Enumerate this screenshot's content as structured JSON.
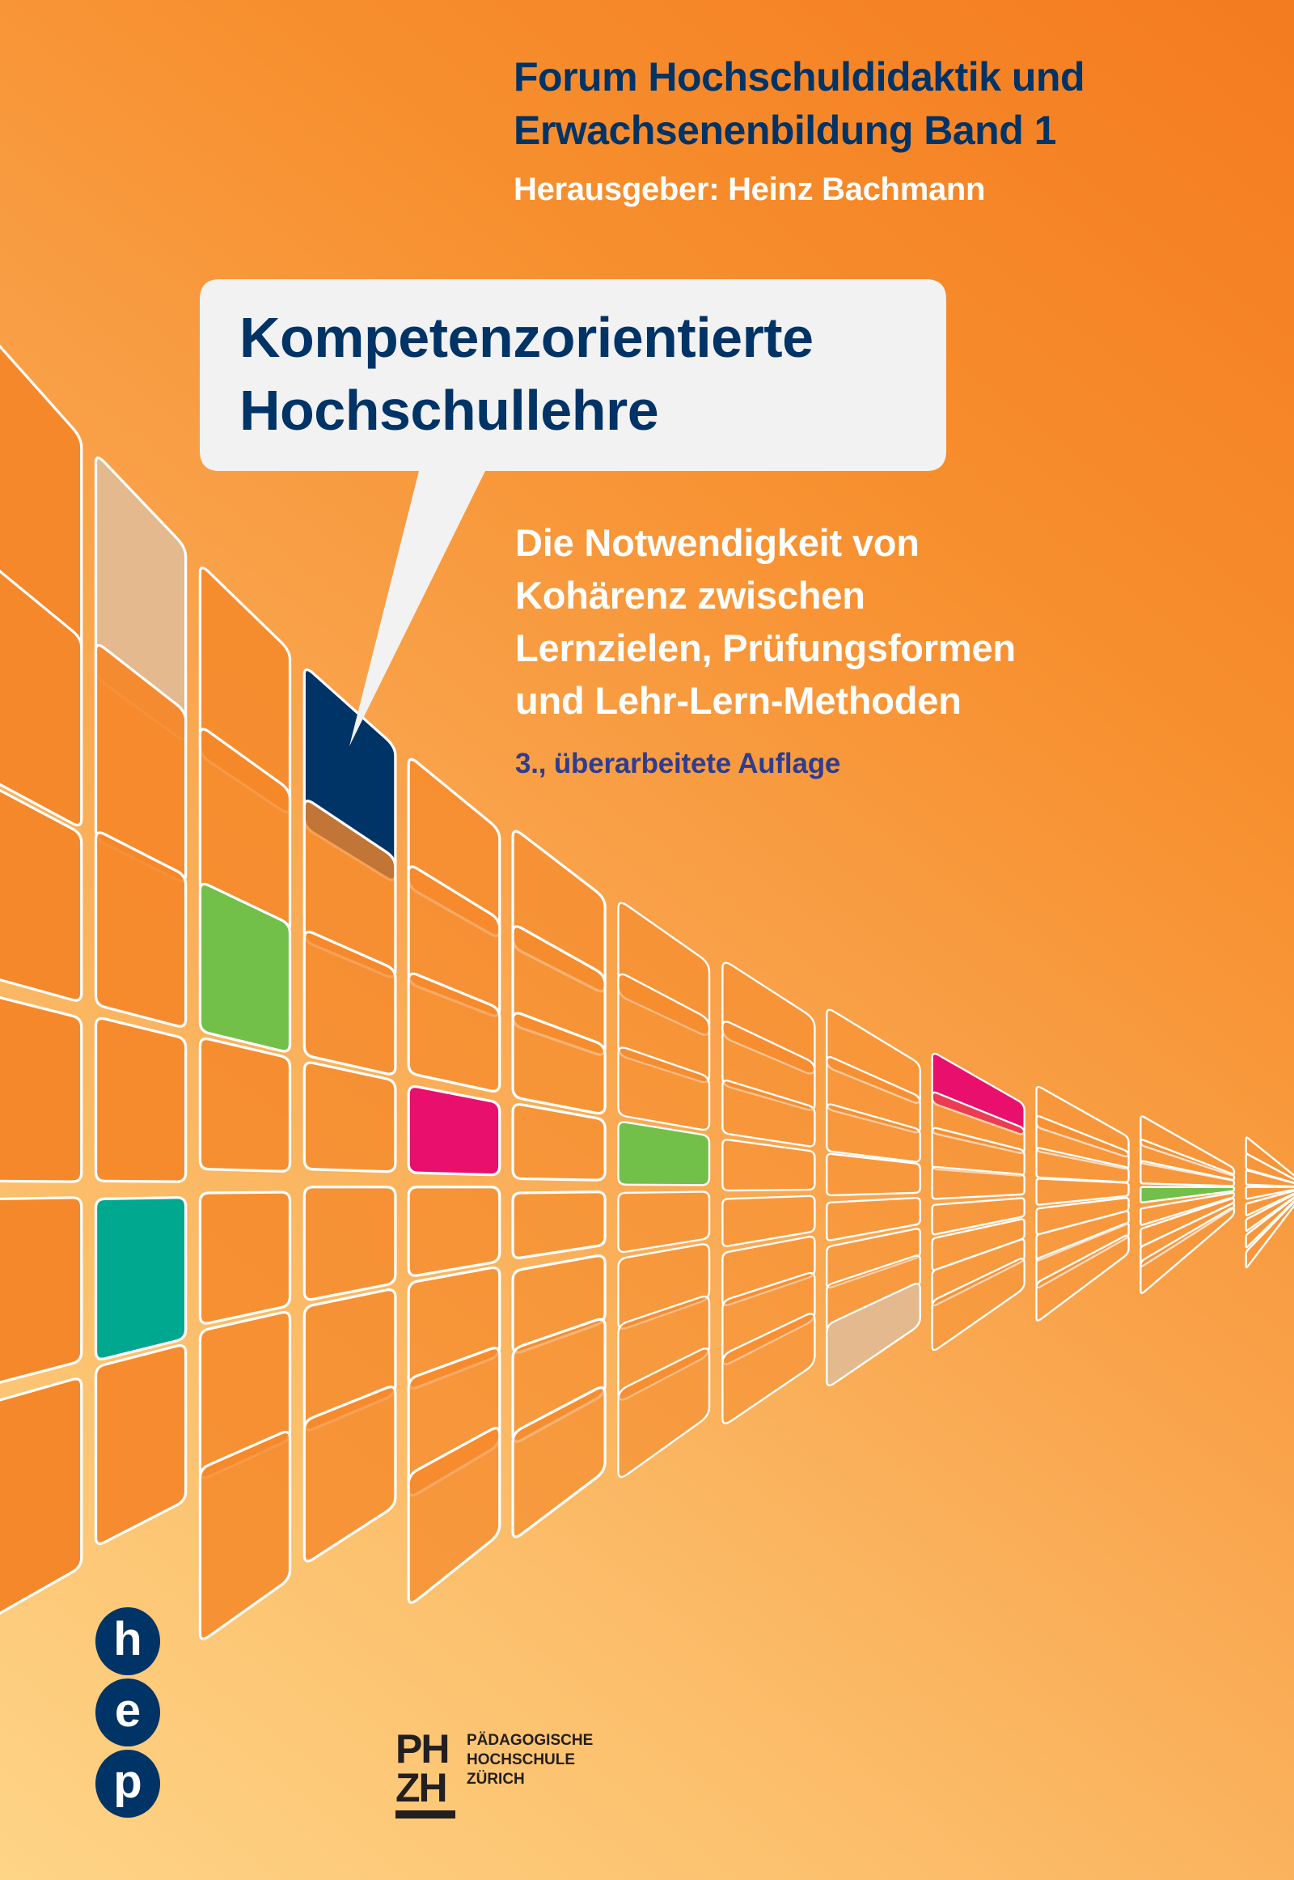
{
  "series": {
    "line1": "Forum Hochschuldidaktik und",
    "line2": "Erwachsenenbildung  Band 1",
    "editor": "Herausgeber: Heinz Bachmann"
  },
  "title": {
    "line1": "Kompetenzorientierte",
    "line2": "Hochschullehre"
  },
  "subtitle": {
    "line1": "Die Notwendigkeit von",
    "line2": "Kohärenz zwischen",
    "line3": "Lernzielen, Prüfungsformen",
    "line4": "und Lehr-Lern-Methoden"
  },
  "edition": "3., überarbeitete Auflage",
  "publisher_logo": {
    "letters": [
      "h",
      "e",
      "p"
    ]
  },
  "institution_logo": {
    "mark_line1": "PH",
    "mark_line2": "ZH",
    "name_line1": "PÄDAGOGISCHE",
    "name_line2": "HOCHSCHULE",
    "name_line3": "ZÜRICH"
  },
  "colors": {
    "navy": "#003366",
    "tile_orange": "#f5882a",
    "tile_beige": "#e4b98e",
    "tile_green": "#72c04a",
    "tile_magenta": "#e8106c",
    "tile_teal": "#00a88f",
    "bubble": "#f2f2f2"
  }
}
